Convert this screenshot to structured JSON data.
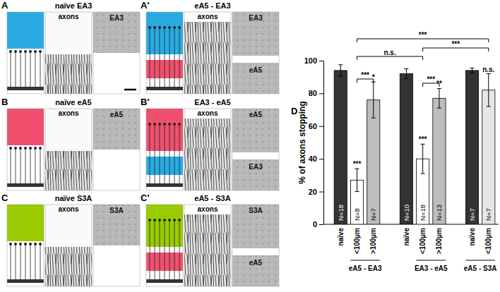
{
  "chart_data": {
    "type": "bar",
    "panel_label": "D",
    "ylabel": "% of axons stopping",
    "ylim": [
      0,
      100
    ],
    "yticks": [
      0,
      20,
      40,
      60,
      80,
      100
    ],
    "groups": [
      {
        "label": "eA5 - EA3",
        "bars": [
          {
            "category": "naïve",
            "value": 94,
            "error": 3.5,
            "color": "#333333",
            "n": "N=18"
          },
          {
            "category": "<100µm",
            "value": 27,
            "error": 7,
            "color": "#ffffff",
            "n": "N=8",
            "sig": "***"
          },
          {
            "category": ">100µm",
            "value": 76,
            "error": 11,
            "color": "#bdbdbd",
            "n": "N=7",
            "sig": "*"
          }
        ]
      },
      {
        "label": "EA3 - eA5",
        "bars": [
          {
            "category": "naïve",
            "value": 92,
            "error": 3,
            "color": "#333333",
            "n": "N=10"
          },
          {
            "category": "<100µm",
            "value": 40,
            "error": 9,
            "color": "#ffffff",
            "n": "N=18",
            "sig": "***"
          },
          {
            "category": ">100µm",
            "value": 77,
            "error": 6,
            "color": "#bdbdbd",
            "n": "N=13",
            "sig": "**"
          }
        ]
      },
      {
        "label": "eA5 - S3A",
        "bars": [
          {
            "category": "naïve",
            "value": 94,
            "error": 1.5,
            "color": "#333333",
            "n": "N=7"
          },
          {
            "category": "<100µm",
            "value": 82,
            "error": 10,
            "color": "#e6e6e6",
            "n": "N=7",
            "sig": "n.s."
          }
        ]
      }
    ],
    "brackets": [
      {
        "from": 1,
        "to": 2,
        "label": "***"
      },
      {
        "from": 4,
        "to": 5,
        "label": "***"
      },
      {
        "from": 1,
        "to": 4,
        "label": "n.s."
      },
      {
        "from": 1,
        "to": 7,
        "label": "***"
      },
      {
        "from": 4,
        "to": 7,
        "label": "***"
      }
    ]
  },
  "panels": [
    {
      "label": "A",
      "title": "naïve EA3",
      "axons": "axons",
      "stain_labels": [
        "EA3"
      ],
      "colors": [
        "#29abe2"
      ]
    },
    {
      "label": "A'",
      "title": "eA5 - EA3",
      "axons": "axons",
      "stain_labels": [
        "EA3",
        "eA5"
      ],
      "colors": [
        "#29abe2",
        "#f0506e"
      ]
    },
    {
      "label": "B",
      "title": "naïve eA5",
      "axons": "axons",
      "stain_labels": [
        "eA5"
      ],
      "colors": [
        "#f0506e"
      ]
    },
    {
      "label": "B'",
      "title": "EA3 - eA5",
      "axons": "axons",
      "stain_labels": [
        "eA5",
        "EA3"
      ],
      "colors": [
        "#f0506e",
        "#29abe2"
      ]
    },
    {
      "label": "C",
      "title": "naïve S3A",
      "axons": "axons",
      "stain_labels": [
        "S3A"
      ],
      "colors": [
        "#99cc00"
      ]
    },
    {
      "label": "C'",
      "title": "eA5 - S3A",
      "axons": "axons",
      "stain_labels": [
        "S3A",
        "eA5"
      ],
      "colors": [
        "#99cc00",
        "#f0506e"
      ]
    }
  ]
}
